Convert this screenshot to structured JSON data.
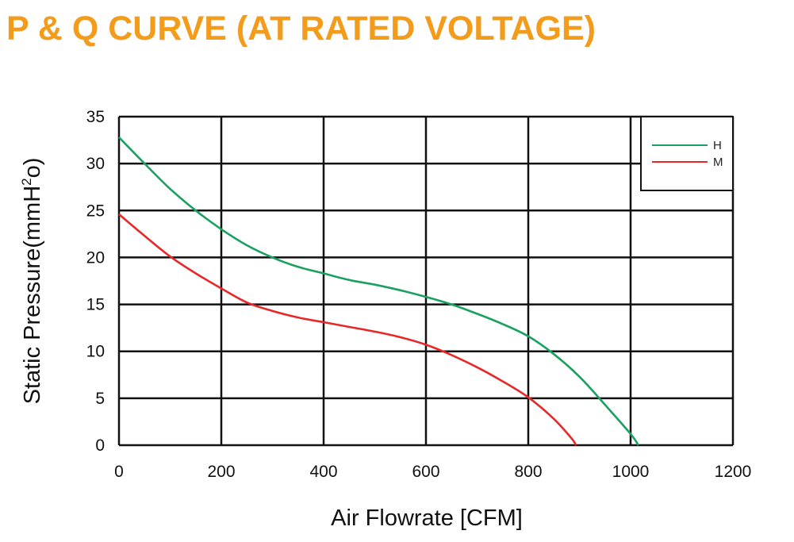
{
  "chart_data": {
    "type": "line",
    "title": "P & Q CURVE (AT RATED VOLTAGE)",
    "xlabel": "Air  Flowrate   [CFM]",
    "ylabel": "Static Pressure(mmH²o)",
    "xlim": [
      0,
      1200
    ],
    "ylim": [
      0,
      35
    ],
    "x_ticks": [
      "0",
      "200",
      "400",
      "600",
      "800",
      "1000",
      "1200"
    ],
    "y_ticks": [
      "0",
      "5",
      "10",
      "15",
      "20",
      "25",
      "30",
      "35"
    ],
    "grid": true,
    "legend_position": "top-right",
    "series": [
      {
        "name": "H",
        "color": "#1aa060",
        "points": [
          [
            0,
            32.8
          ],
          [
            50,
            30
          ],
          [
            100,
            27.3
          ],
          [
            150,
            25
          ],
          [
            200,
            23
          ],
          [
            250,
            21.3
          ],
          [
            300,
            20
          ],
          [
            350,
            19
          ],
          [
            400,
            18.3
          ],
          [
            450,
            17.6
          ],
          [
            500,
            17.1
          ],
          [
            550,
            16.5
          ],
          [
            600,
            15.8
          ],
          [
            650,
            15
          ],
          [
            700,
            14
          ],
          [
            750,
            12.9
          ],
          [
            800,
            11.6
          ],
          [
            850,
            9.7
          ],
          [
            900,
            7.3
          ],
          [
            950,
            4.3
          ],
          [
            1000,
            1.2
          ],
          [
            1015,
            0
          ]
        ]
      },
      {
        "name": "M",
        "color": "#e82828",
        "points": [
          [
            0,
            24.6
          ],
          [
            50,
            22.3
          ],
          [
            100,
            20.1
          ],
          [
            150,
            18.3
          ],
          [
            200,
            16.7
          ],
          [
            250,
            15.2
          ],
          [
            300,
            14.3
          ],
          [
            350,
            13.6
          ],
          [
            400,
            13.1
          ],
          [
            450,
            12.6
          ],
          [
            500,
            12.1
          ],
          [
            550,
            11.5
          ],
          [
            600,
            10.7
          ],
          [
            650,
            9.6
          ],
          [
            700,
            8.3
          ],
          [
            750,
            6.8
          ],
          [
            800,
            5.1
          ],
          [
            850,
            2.8
          ],
          [
            885,
            0.7
          ],
          [
            893,
            0
          ]
        ]
      }
    ],
    "colors": {
      "title": "#f39b1b",
      "grid": "#111111"
    }
  }
}
